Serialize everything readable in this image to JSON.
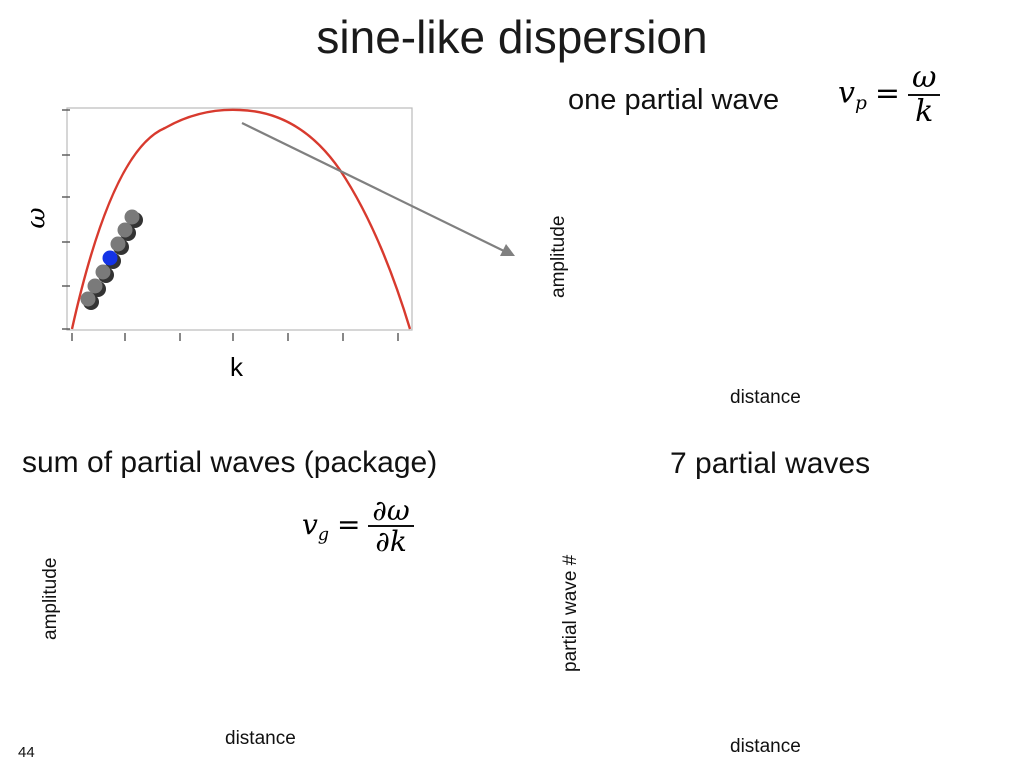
{
  "slide": {
    "title": "sine-like dispersion",
    "page_number": "44"
  },
  "top_panel": {
    "heading": "one partial wave",
    "formula": {
      "lhs": "v",
      "lhs_sub": "p",
      "equals": "=",
      "numerator": "ω",
      "denominator": "k"
    },
    "dispersion_plot": {
      "y_label": "ω",
      "x_label": "k",
      "curve_color": "#d83a2e",
      "selected_point_color": "#1433e6",
      "other_point_color": "#7a7a7a"
    },
    "amplitude_axis_label": "amplitude",
    "distance_axis_label": "distance",
    "arrow_color": "#808080"
  },
  "bottom_left_panel": {
    "heading": "sum of partial waves (package)",
    "formula": {
      "lhs": "v",
      "lhs_sub": "g",
      "equals": "=",
      "numerator": "∂ω",
      "denominator": "∂k"
    },
    "y_axis_label": "amplitude",
    "x_axis_label": "distance"
  },
  "bottom_right_panel": {
    "heading": "7 partial waves",
    "y_axis_label": "partial wave #",
    "x_axis_label": "distance"
  }
}
